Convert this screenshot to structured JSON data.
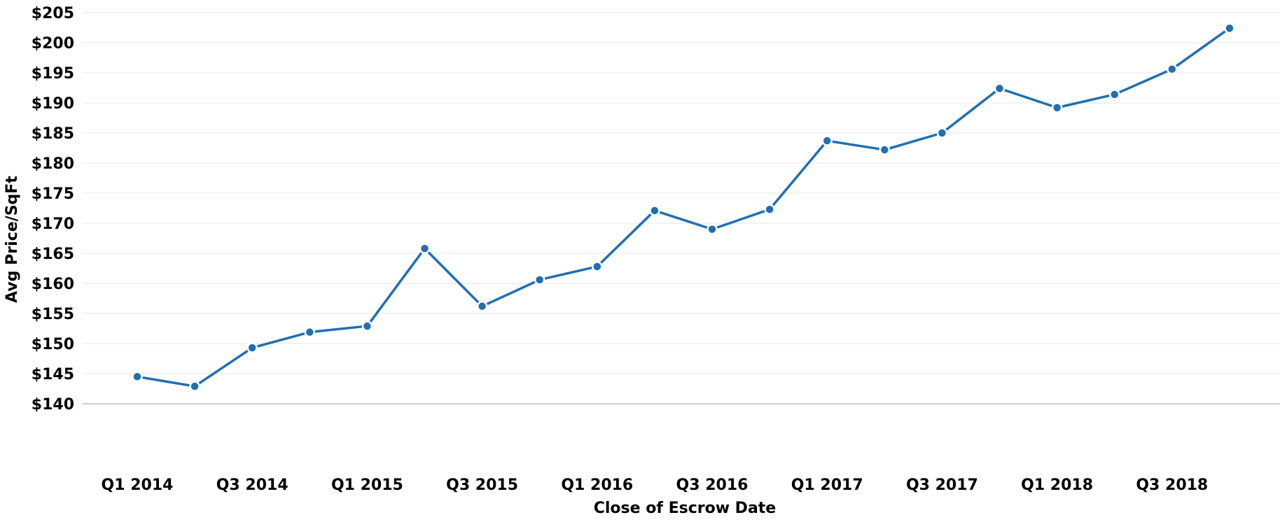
{
  "chart_data": {
    "type": "line",
    "title": "",
    "xlabel": "Close of Escrow Date",
    "ylabel": "Avg Price/SqFt",
    "categories": [
      "Q1 2014",
      "Q2 2014",
      "Q3 2014",
      "Q4 2014",
      "Q1 2015",
      "Q2 2015",
      "Q3 2015",
      "Q4 2015",
      "Q1 2016",
      "Q2 2016",
      "Q3 2016",
      "Q4 2016",
      "Q1 2017",
      "Q2 2017",
      "Q3 2017",
      "Q4 2017",
      "Q1 2018",
      "Q2 2018",
      "Q3 2018",
      "Q4 2018"
    ],
    "x_tick_labels": [
      "Q1 2014",
      "Q3 2014",
      "Q1 2015",
      "Q3 2015",
      "Q1 2016",
      "Q3 2016",
      "Q1 2017",
      "Q3 2017",
      "Q1 2018",
      "Q3 2018"
    ],
    "series": [
      {
        "values": [
          144.5,
          142.9,
          149.3,
          151.9,
          152.9,
          165.8,
          156.2,
          160.6,
          162.8,
          172.1,
          169.0,
          172.3,
          183.7,
          182.2,
          185.0,
          192.4,
          189.2,
          191.4,
          195.6,
          202.4
        ]
      }
    ],
    "ylim": [
      140,
      205
    ],
    "y_ticks": [
      140,
      145,
      150,
      155,
      160,
      165,
      170,
      175,
      180,
      185,
      190,
      195,
      200,
      205
    ],
    "y_tick_format": "$",
    "grid": true,
    "legend": "none",
    "colors": {
      "line": "#1f6fb4",
      "gridline": "#e6e6e6",
      "axis": "#bfbfbf"
    }
  }
}
